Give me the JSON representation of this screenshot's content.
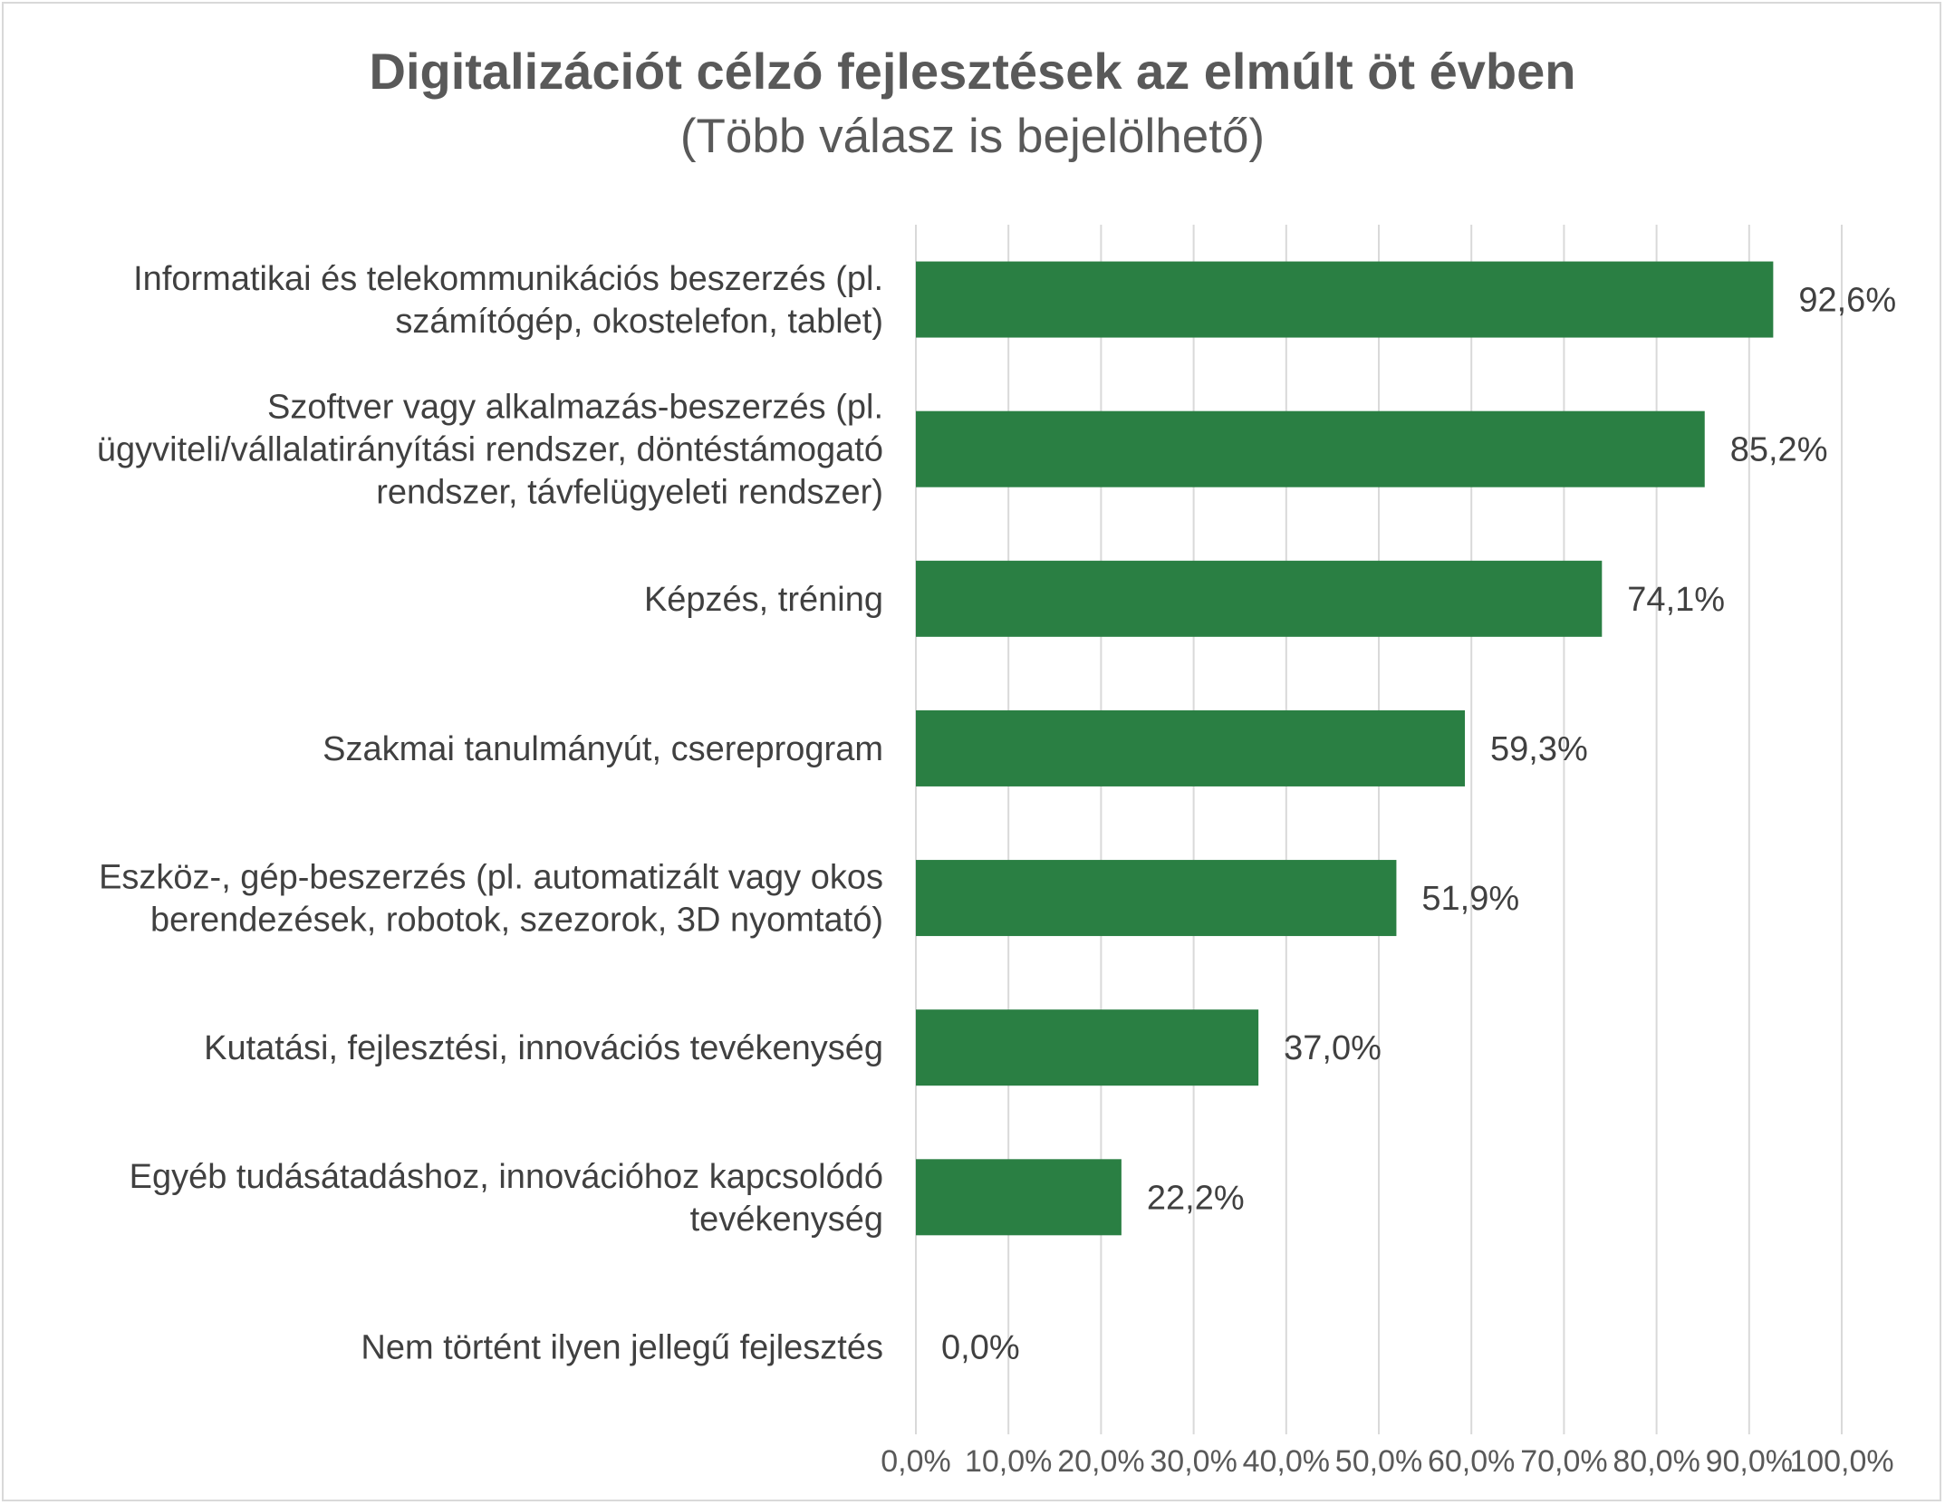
{
  "chart_data": {
    "type": "bar",
    "orientation": "horizontal",
    "title": "Digitalizációt célzó fejlesztések az elmúlt öt évben",
    "subtitle": "(Több válasz is bejelölhető)",
    "categories": [
      [
        "Informatikai és telekommunikációs beszerzés (pl.",
        "számítógép, okostelefon, tablet)"
      ],
      [
        "Szoftver vagy alkalmazás-beszerzés (pl.",
        "ügyviteli/vállalatirányítási rendszer, döntéstámogató",
        "rendszer, távfelügyeleti rendszer)"
      ],
      [
        "Képzés, tréning"
      ],
      [
        "Szakmai tanulmányút, csereprogram"
      ],
      [
        "Eszköz-, gép-beszerzés (pl. automatizált vagy okos",
        "berendezések, robotok, szezorok, 3D nyomtató)"
      ],
      [
        "Kutatási, fejlesztési, innovációs tevékenység"
      ],
      [
        "Egyéb tudásátadáshoz, innovációhoz kapcsolódó",
        "tevékenység"
      ],
      [
        "Nem történt ilyen jellegű fejlesztés"
      ]
    ],
    "values": [
      92.6,
      85.2,
      74.1,
      59.3,
      51.9,
      37.0,
      22.2,
      0.0
    ],
    "value_labels": [
      "92,6%",
      "85,2%",
      "74,1%",
      "59,3%",
      "51,9%",
      "37,0%",
      "22,2%",
      "0,0%"
    ],
    "xlim": [
      0,
      100
    ],
    "x_ticks": [
      "0,0%",
      "10,0%",
      "20,0%",
      "30,0%",
      "40,0%",
      "50,0%",
      "60,0%",
      "70,0%",
      "80,0%",
      "90,0%",
      "100,0%"
    ],
    "grid": true,
    "legend": "none",
    "bar_color": "#2a7f43"
  }
}
